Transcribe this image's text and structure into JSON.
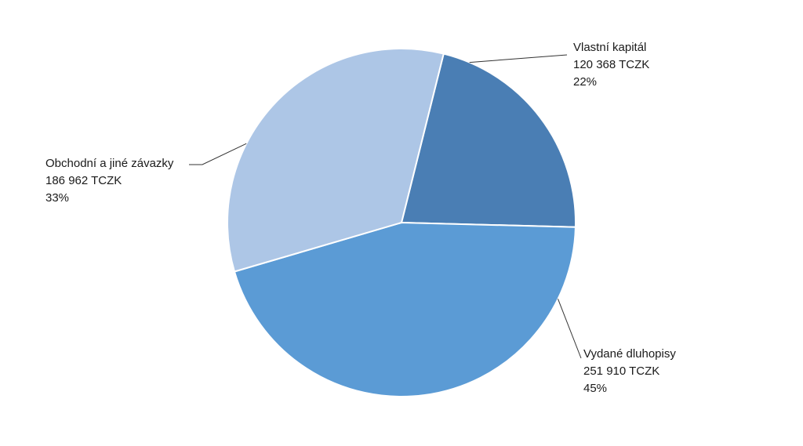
{
  "chart_data": {
    "type": "pie",
    "slices": [
      {
        "name": "Vlastní kapitál",
        "value": 120368,
        "value_label": "120 368 TCZK",
        "percent_label": "22%",
        "color": "#4A7EB4"
      },
      {
        "name": "Vydané dluhopisy",
        "value": 251910,
        "value_label": "251 910 TCZK",
        "percent_label": "45%",
        "color": "#5B9BD5"
      },
      {
        "name": "Obchodní a jiné závazky",
        "value": 186962,
        "value_label": "186 962 TCZK",
        "percent_label": "33%",
        "color": "#ADC6E6"
      }
    ],
    "start_angle_deg": 76,
    "direction": "clockwise",
    "slice_border_color": "#ffffff",
    "leader_line_color": "#333333"
  }
}
